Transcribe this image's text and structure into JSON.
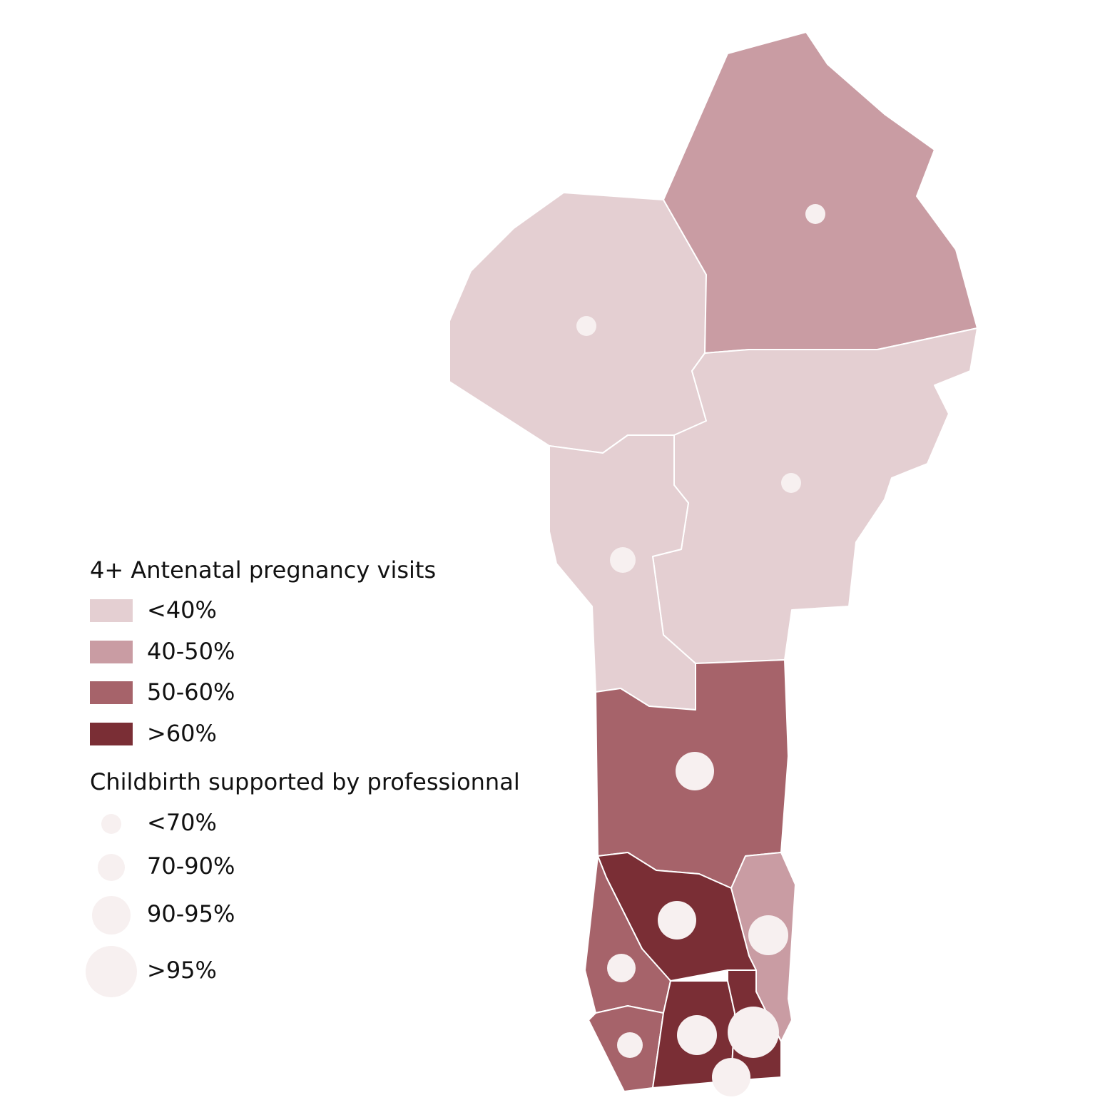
{
  "legend_fill": {
    "title": "4+ Antenatal pregnancy visits",
    "items": [
      "<40%",
      "40-50%",
      "50-60%",
      ">60%"
    ]
  },
  "legend_size": {
    "title": "Childbirth supported by professionnal",
    "items": [
      "<70%",
      "70-90%",
      "90-95%",
      ">95%"
    ]
  }
}
